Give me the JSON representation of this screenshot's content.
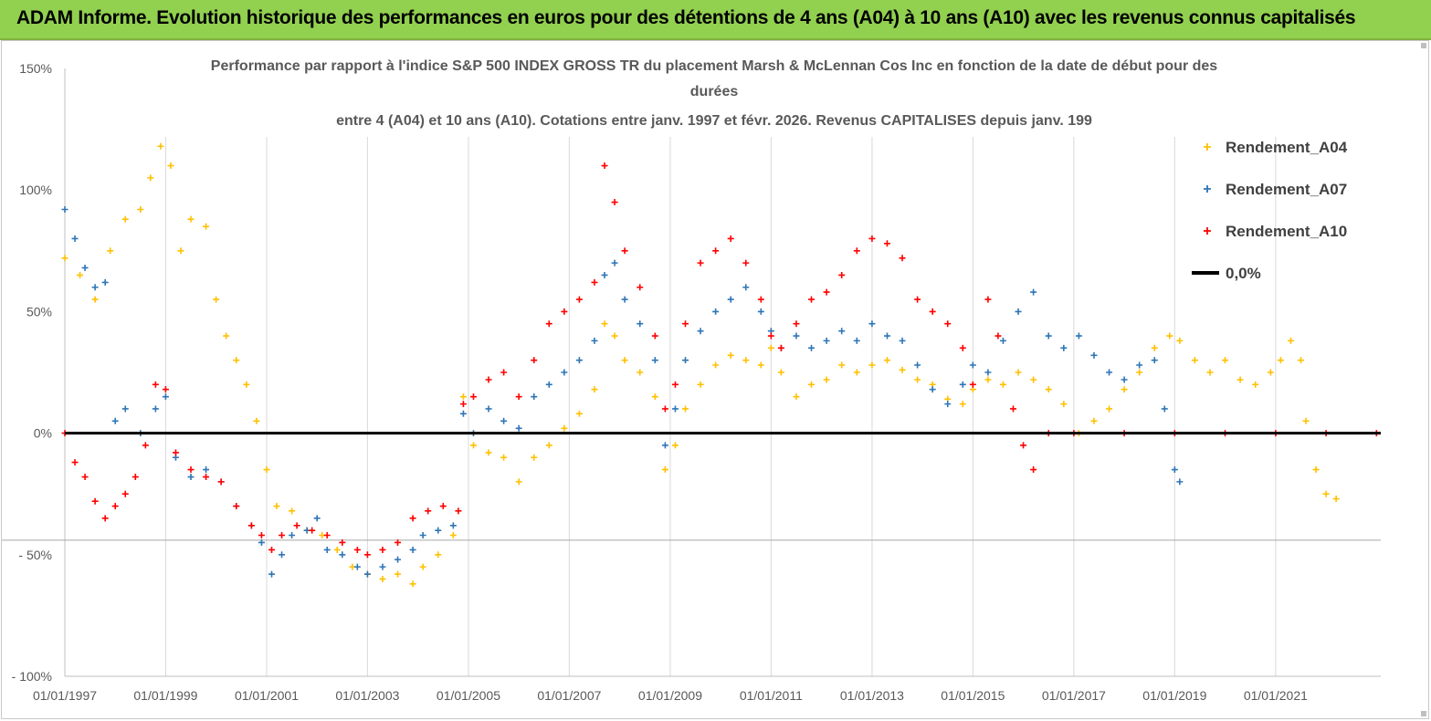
{
  "banner": {
    "title": "ADAM Informe. Evolution historique des performances en euros pour des détentions de 4 ans (A04) à 10 ans (A10) avec les revenus connus capitalisés",
    "background": "#92d050"
  },
  "chart_data": {
    "type": "scatter",
    "title_lines": [
      "Performance par rapport à l'indice S&P 500 INDEX GROSS TR  du placement Marsh & McLennan Cos Inc en fonction de la date de début pour des",
      "durées",
      "entre 4 (A04) et 10 ans (A10).  Cotations entre janv. 1997 et févr. 2026. Revenus CAPITALISES depuis janv. 199"
    ],
    "xlabel": "",
    "ylabel": "",
    "x_tick_labels": [
      "01/01/1997",
      "01/01/1999",
      "01/01/2001",
      "01/01/2003",
      "01/01/2005",
      "01/01/2007",
      "01/01/2009",
      "01/01/2011",
      "01/01/2013",
      "01/01/2015",
      "01/01/2017",
      "01/01/2019",
      "01/01/2021"
    ],
    "x_range": [
      "1997-01-01",
      "2023-02-01"
    ],
    "y_tick_labels": [
      "150%",
      "100%",
      "50%",
      "0%",
      "- 50%",
      "- 100%"
    ],
    "y_ticks": [
      150,
      100,
      50,
      0,
      -50,
      -100
    ],
    "ylim": [
      -100,
      150
    ],
    "grid": "vertical",
    "legend_position": "right",
    "colors": {
      "A04": "#ffc000",
      "A07": "#2e75b6",
      "A10": "#ff0000",
      "zero": "#000000"
    },
    "legend": [
      {
        "key": "A04",
        "label": "Rendement_A04",
        "marker": "+"
      },
      {
        "key": "A07",
        "label": "Rendement_A07",
        "marker": "+"
      },
      {
        "key": "A10",
        "label": "Rendement_A10",
        "marker": "+"
      },
      {
        "key": "zero",
        "label": "0,0%",
        "marker": "line"
      }
    ],
    "series": [
      {
        "name": "Rendement_A04",
        "key": "A04",
        "points": [
          [
            1997.0,
            72
          ],
          [
            1997.3,
            65
          ],
          [
            1997.6,
            55
          ],
          [
            1997.9,
            75
          ],
          [
            1998.2,
            88
          ],
          [
            1998.5,
            92
          ],
          [
            1998.7,
            105
          ],
          [
            1998.9,
            118
          ],
          [
            1999.1,
            110
          ],
          [
            1999.3,
            75
          ],
          [
            1999.5,
            88
          ],
          [
            1999.8,
            85
          ],
          [
            2000.0,
            55
          ],
          [
            2000.2,
            40
          ],
          [
            2000.4,
            30
          ],
          [
            2000.6,
            20
          ],
          [
            2000.8,
            5
          ],
          [
            2001.0,
            -15
          ],
          [
            2001.2,
            -30
          ],
          [
            2001.5,
            -32
          ],
          [
            2001.8,
            -40
          ],
          [
            2002.1,
            -42
          ],
          [
            2002.4,
            -48
          ],
          [
            2002.7,
            -55
          ],
          [
            2003.0,
            -58
          ],
          [
            2003.3,
            -60
          ],
          [
            2003.6,
            -58
          ],
          [
            2003.9,
            -62
          ],
          [
            2004.1,
            -55
          ],
          [
            2004.4,
            -50
          ],
          [
            2004.7,
            -42
          ],
          [
            2004.9,
            15
          ],
          [
            2005.1,
            -5
          ],
          [
            2005.4,
            -8
          ],
          [
            2005.7,
            -10
          ],
          [
            2006.0,
            -20
          ],
          [
            2006.3,
            -10
          ],
          [
            2006.6,
            -5
          ],
          [
            2006.9,
            2
          ],
          [
            2007.2,
            8
          ],
          [
            2007.5,
            18
          ],
          [
            2007.7,
            45
          ],
          [
            2007.9,
            40
          ],
          [
            2008.1,
            30
          ],
          [
            2008.4,
            25
          ],
          [
            2008.7,
            15
          ],
          [
            2008.9,
            -15
          ],
          [
            2009.1,
            -5
          ],
          [
            2009.3,
            10
          ],
          [
            2009.6,
            20
          ],
          [
            2009.9,
            28
          ],
          [
            2010.2,
            32
          ],
          [
            2010.5,
            30
          ],
          [
            2010.8,
            28
          ],
          [
            2011.0,
            35
          ],
          [
            2011.2,
            25
          ],
          [
            2011.5,
            15
          ],
          [
            2011.8,
            20
          ],
          [
            2012.1,
            22
          ],
          [
            2012.4,
            28
          ],
          [
            2012.7,
            25
          ],
          [
            2013.0,
            28
          ],
          [
            2013.3,
            30
          ],
          [
            2013.6,
            26
          ],
          [
            2013.9,
            22
          ],
          [
            2014.2,
            20
          ],
          [
            2014.5,
            14
          ],
          [
            2014.8,
            12
          ],
          [
            2015.0,
            18
          ],
          [
            2015.3,
            22
          ],
          [
            2015.6,
            20
          ],
          [
            2015.9,
            25
          ],
          [
            2016.2,
            22
          ],
          [
            2016.5,
            18
          ],
          [
            2016.8,
            12
          ],
          [
            2017.1,
            0
          ],
          [
            2017.4,
            5
          ],
          [
            2017.7,
            10
          ],
          [
            2018.0,
            18
          ],
          [
            2018.3,
            25
          ],
          [
            2018.6,
            35
          ],
          [
            2018.9,
            40
          ],
          [
            2019.1,
            38
          ],
          [
            2019.4,
            30
          ],
          [
            2019.7,
            25
          ],
          [
            2020.0,
            30
          ],
          [
            2020.3,
            22
          ],
          [
            2020.6,
            20
          ],
          [
            2020.9,
            25
          ],
          [
            2021.1,
            30
          ],
          [
            2021.3,
            38
          ],
          [
            2021.5,
            30
          ],
          [
            2021.6,
            5
          ],
          [
            2021.8,
            -15
          ],
          [
            2022.0,
            -25
          ],
          [
            2022.2,
            -27
          ]
        ]
      },
      {
        "name": "Rendement_A07",
        "key": "A07",
        "points": [
          [
            1997.0,
            92
          ],
          [
            1997.2,
            80
          ],
          [
            1997.4,
            68
          ],
          [
            1997.6,
            60
          ],
          [
            1997.8,
            62
          ],
          [
            1998.0,
            5
          ],
          [
            1998.2,
            10
          ],
          [
            1998.5,
            0
          ],
          [
            1998.8,
            10
          ],
          [
            1999.0,
            15
          ],
          [
            1999.2,
            -10
          ],
          [
            1999.5,
            -18
          ],
          [
            1999.8,
            -15
          ],
          [
            2000.1,
            -20
          ],
          [
            2000.4,
            -30
          ],
          [
            2000.7,
            -38
          ],
          [
            2000.9,
            -45
          ],
          [
            2001.1,
            -58
          ],
          [
            2001.3,
            -50
          ],
          [
            2001.5,
            -42
          ],
          [
            2001.8,
            -40
          ],
          [
            2002.0,
            -35
          ],
          [
            2002.2,
            -48
          ],
          [
            2002.5,
            -50
          ],
          [
            2002.8,
            -55
          ],
          [
            2003.0,
            -58
          ],
          [
            2003.3,
            -55
          ],
          [
            2003.6,
            -52
          ],
          [
            2003.9,
            -48
          ],
          [
            2004.1,
            -42
          ],
          [
            2004.4,
            -40
          ],
          [
            2004.7,
            -38
          ],
          [
            2004.9,
            8
          ],
          [
            2005.1,
            0
          ],
          [
            2005.4,
            10
          ],
          [
            2005.7,
            5
          ],
          [
            2006.0,
            2
          ],
          [
            2006.3,
            15
          ],
          [
            2006.6,
            20
          ],
          [
            2006.9,
            25
          ],
          [
            2007.2,
            30
          ],
          [
            2007.5,
            38
          ],
          [
            2007.7,
            65
          ],
          [
            2007.9,
            70
          ],
          [
            2008.1,
            55
          ],
          [
            2008.4,
            45
          ],
          [
            2008.7,
            30
          ],
          [
            2008.9,
            -5
          ],
          [
            2009.1,
            10
          ],
          [
            2009.3,
            30
          ],
          [
            2009.6,
            42
          ],
          [
            2009.9,
            50
          ],
          [
            2010.2,
            55
          ],
          [
            2010.5,
            60
          ],
          [
            2010.8,
            50
          ],
          [
            2011.0,
            42
          ],
          [
            2011.2,
            35
          ],
          [
            2011.5,
            40
          ],
          [
            2011.8,
            35
          ],
          [
            2012.1,
            38
          ],
          [
            2012.4,
            42
          ],
          [
            2012.7,
            38
          ],
          [
            2013.0,
            45
          ],
          [
            2013.3,
            40
          ],
          [
            2013.6,
            38
          ],
          [
            2013.9,
            28
          ],
          [
            2014.2,
            18
          ],
          [
            2014.5,
            12
          ],
          [
            2014.8,
            20
          ],
          [
            2015.0,
            28
          ],
          [
            2015.3,
            25
          ],
          [
            2015.6,
            38
          ],
          [
            2015.9,
            50
          ],
          [
            2016.2,
            58
          ],
          [
            2016.5,
            40
          ],
          [
            2016.8,
            35
          ],
          [
            2017.1,
            40
          ],
          [
            2017.4,
            32
          ],
          [
            2017.7,
            25
          ],
          [
            2018.0,
            22
          ],
          [
            2018.3,
            28
          ],
          [
            2018.6,
            30
          ],
          [
            2018.8,
            10
          ],
          [
            2019.0,
            -15
          ],
          [
            2019.1,
            -20
          ]
        ]
      },
      {
        "name": "Rendement_A10",
        "key": "A10",
        "points": [
          [
            1997.0,
            0
          ],
          [
            1997.2,
            -12
          ],
          [
            1997.4,
            -18
          ],
          [
            1997.6,
            -28
          ],
          [
            1997.8,
            -35
          ],
          [
            1998.0,
            -30
          ],
          [
            1998.2,
            -25
          ],
          [
            1998.4,
            -18
          ],
          [
            1998.6,
            -5
          ],
          [
            1998.8,
            20
          ],
          [
            1999.0,
            18
          ],
          [
            1999.2,
            -8
          ],
          [
            1999.5,
            -15
          ],
          [
            1999.8,
            -18
          ],
          [
            2000.1,
            -20
          ],
          [
            2000.4,
            -30
          ],
          [
            2000.7,
            -38
          ],
          [
            2000.9,
            -42
          ],
          [
            2001.1,
            -48
          ],
          [
            2001.3,
            -42
          ],
          [
            2001.6,
            -38
          ],
          [
            2001.9,
            -40
          ],
          [
            2002.2,
            -42
          ],
          [
            2002.5,
            -45
          ],
          [
            2002.8,
            -48
          ],
          [
            2003.0,
            -50
          ],
          [
            2003.3,
            -48
          ],
          [
            2003.6,
            -45
          ],
          [
            2003.9,
            -35
          ],
          [
            2004.2,
            -32
          ],
          [
            2004.5,
            -30
          ],
          [
            2004.8,
            -32
          ],
          [
            2004.9,
            12
          ],
          [
            2005.1,
            15
          ],
          [
            2005.4,
            22
          ],
          [
            2005.7,
            25
          ],
          [
            2006.0,
            15
          ],
          [
            2006.3,
            30
          ],
          [
            2006.6,
            45
          ],
          [
            2006.9,
            50
          ],
          [
            2007.2,
            55
          ],
          [
            2007.5,
            62
          ],
          [
            2007.7,
            110
          ],
          [
            2007.9,
            95
          ],
          [
            2008.1,
            75
          ],
          [
            2008.4,
            60
          ],
          [
            2008.7,
            40
          ],
          [
            2008.9,
            10
          ],
          [
            2009.1,
            20
          ],
          [
            2009.3,
            45
          ],
          [
            2009.6,
            70
          ],
          [
            2009.9,
            75
          ],
          [
            2010.2,
            80
          ],
          [
            2010.5,
            70
          ],
          [
            2010.8,
            55
          ],
          [
            2011.0,
            40
          ],
          [
            2011.2,
            35
          ],
          [
            2011.5,
            45
          ],
          [
            2011.8,
            55
          ],
          [
            2012.1,
            58
          ],
          [
            2012.4,
            65
          ],
          [
            2012.7,
            75
          ],
          [
            2013.0,
            80
          ],
          [
            2013.3,
            78
          ],
          [
            2013.6,
            72
          ],
          [
            2013.9,
            55
          ],
          [
            2014.2,
            50
          ],
          [
            2014.5,
            45
          ],
          [
            2014.8,
            35
          ],
          [
            2015.0,
            20
          ],
          [
            2015.3,
            55
          ],
          [
            2015.5,
            40
          ],
          [
            2015.8,
            10
          ],
          [
            2016.0,
            -5
          ],
          [
            2016.2,
            -15
          ],
          [
            2016.5,
            0
          ],
          [
            2017.0,
            0
          ],
          [
            2018.0,
            0
          ],
          [
            2019.0,
            0
          ],
          [
            2020.0,
            0
          ],
          [
            2021.0,
            0
          ],
          [
            2022.0,
            0
          ],
          [
            2023.0,
            0
          ]
        ]
      }
    ],
    "zero_line_value": 0
  }
}
